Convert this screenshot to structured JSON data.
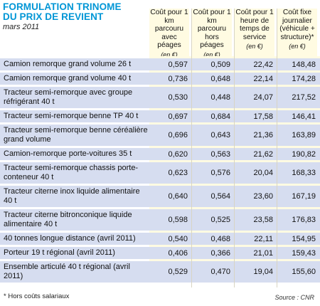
{
  "header": {
    "title_line1": "FORMULATION TRINOME",
    "title_line2": "DU PRIX DE REVIENT",
    "subtitle": "mars 2011"
  },
  "columns": [
    {
      "label": "Coût pour 1 km parcouru avec péages",
      "unit": "(en €)"
    },
    {
      "label": "Coût pour 1 km parcouru hors péages",
      "unit": "(en €)"
    },
    {
      "label": "Coût pour 1 heure de temps de service",
      "unit": "(en €)"
    },
    {
      "label": "Coût fixe journalier (véhicule + structure)*",
      "unit": "(en €)"
    }
  ],
  "rows": [
    {
      "label": "Camion remorque grand volume 26 t",
      "values": [
        "0,597",
        "0,509",
        "22,42",
        "148,48"
      ]
    },
    {
      "label": "Camion remorque grand volume 40 t",
      "values": [
        "0,736",
        "0,648",
        "22,14",
        "174,28"
      ]
    },
    {
      "label": "Tracteur semi-remorque avec groupe réfrigérant 40 t",
      "values": [
        "0,530",
        "0,448",
        "24,07",
        "217,52"
      ]
    },
    {
      "label": "Tracteur semi-remorque benne TP 40 t",
      "values": [
        "0,697",
        "0,684",
        "17,58",
        "146,41"
      ]
    },
    {
      "label": "Tracteur semi-remorque benne céréalière grand volume",
      "values": [
        "0,696",
        "0,643",
        "21,36",
        "163,89"
      ]
    },
    {
      "label": "Camion-remorque porte-voitures 35 t",
      "values": [
        "0,620",
        "0,563",
        "21,62",
        "190,82"
      ]
    },
    {
      "label": "Tracteur semi-remorque chassis porte-conteneur 40 t",
      "values": [
        "0,623",
        "0,576",
        "20,04",
        "168,33"
      ]
    },
    {
      "label": "Tracteur citerne inox liquide alimentaire 40 t",
      "values": [
        "0,640",
        "0,564",
        "23,60",
        "167,19"
      ]
    },
    {
      "label": "Tracteur citerne bitronconique liquide alimentaire 40 t",
      "values": [
        "0,598",
        "0,525",
        "23,58",
        "176,83"
      ]
    },
    {
      "label": "40 tonnes longue distance (avril 2011)",
      "values": [
        "0,540",
        "0,468",
        "22,11",
        "154,95"
      ]
    },
    {
      "label": "Porteur 19 t régional (avril 2011)",
      "values": [
        "0,406",
        "0,366",
        "21,01",
        "159,43"
      ]
    },
    {
      "label": "Ensemble articulé 40 t régional (avril 2011)",
      "values": [
        "0,529",
        "0,470",
        "19,04",
        "155,60"
      ]
    }
  ],
  "footer": {
    "note": "* Hors coûts salariaux",
    "source": "Source : CNR"
  },
  "colors": {
    "title": "#0096d6",
    "row_band": "#d6ddf0",
    "column_band": "#fffbe2"
  }
}
